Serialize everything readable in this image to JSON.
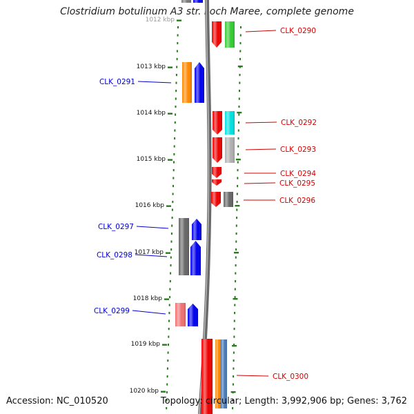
{
  "title": "Clostridium botulinum A3 str. Loch Maree, complete genome",
  "footer": {
    "accession": "Accession: NC_010520",
    "topology": "Topology: circular; Length: 3,992,906 bp; Genes: 3,762"
  },
  "colors": {
    "backbone": "#7a7a7a",
    "tick": "#2a7a1e",
    "label_forward": "#d00000",
    "label_reverse": "#0000cc"
  },
  "kbp_labels": [
    "1012 kbp",
    "1013 kbp",
    "1014 kbp",
    "1015 kbp",
    "1016 kbp",
    "1017 kbp",
    "1018 kbp",
    "1019 kbp",
    "1020 kbp"
  ],
  "genes": [
    {
      "id": "g1",
      "label": "",
      "color": "#7a7a7a",
      "strand": "reverse"
    },
    {
      "id": "g2",
      "label": "",
      "color": "#0000ee",
      "strand": "reverse"
    },
    {
      "id": "g3",
      "label": "",
      "color": "#ee0000",
      "strand": "forward"
    },
    {
      "id": "g4",
      "label": "",
      "color": "#33cc33",
      "strand": "forward"
    },
    {
      "id": "g5",
      "label": "CLK_0290",
      "color": "#33cc33",
      "strand": "forward"
    },
    {
      "id": "g6",
      "label": "",
      "color": "#ff8800",
      "strand": "reverse"
    },
    {
      "id": "g7",
      "label": "CLK_0291",
      "color": "#0000ee",
      "strand": "reverse"
    },
    {
      "id": "g8",
      "label": "",
      "color": "#ee0000",
      "strand": "forward"
    },
    {
      "id": "g9",
      "label": "CLK_0292",
      "color": "#00e0e0",
      "strand": "forward"
    },
    {
      "id": "g10",
      "label": "",
      "color": "#ee0000",
      "strand": "forward"
    },
    {
      "id": "g11",
      "label": "CLK_0293",
      "color": "#b0b0b0",
      "strand": "forward"
    },
    {
      "id": "g12",
      "label": "CLK_0294",
      "color": "#ee0000",
      "strand": "forward"
    },
    {
      "id": "g13",
      "label": "CLK_0295",
      "color": "#ee0000",
      "strand": "forward"
    },
    {
      "id": "g14",
      "label": "",
      "color": "#ee0000",
      "strand": "forward"
    },
    {
      "id": "g15",
      "label": "CLK_0296",
      "color": "#666666",
      "strand": "forward"
    },
    {
      "id": "g16",
      "label": "",
      "color": "#666666",
      "strand": "reverse"
    },
    {
      "id": "g17",
      "label": "CLK_0297",
      "color": "#0000ee",
      "strand": "reverse"
    },
    {
      "id": "g18",
      "label": "CLK_0298",
      "color": "#0000ee",
      "strand": "reverse"
    },
    {
      "id": "g19",
      "label": "",
      "color": "#f07070",
      "strand": "reverse"
    },
    {
      "id": "g20",
      "label": "CLK_0299",
      "color": "#0000ee",
      "strand": "reverse"
    },
    {
      "id": "g21",
      "label": "",
      "color": "#ee0000",
      "strand": "forward"
    },
    {
      "id": "g22",
      "label": "",
      "color": "#ff8800",
      "strand": "forward"
    },
    {
      "id": "g23",
      "label": "CLK_0300",
      "color": "#4a7ab8",
      "strand": "forward"
    }
  ]
}
